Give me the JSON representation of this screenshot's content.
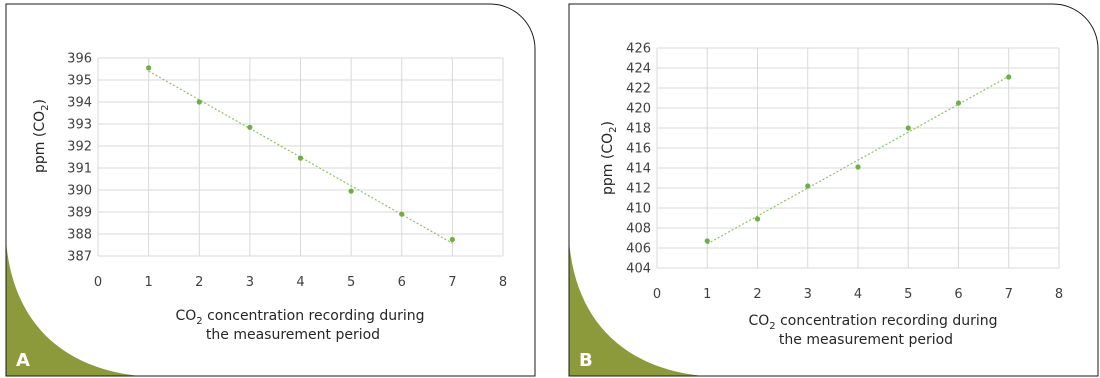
{
  "colors": {
    "point": "#70ad47",
    "trendline": "#8fc06a",
    "grid": "#d9d9d9",
    "corner": "#8c9a3c",
    "frame": "#1a1a1a"
  },
  "chart_data": [
    {
      "type": "scatter",
      "panel_label": "A",
      "x": [
        1,
        2,
        3,
        4,
        5,
        6,
        7
      ],
      "y": [
        395.55,
        394.0,
        392.85,
        391.45,
        389.95,
        388.9,
        387.75
      ],
      "trendline": "linear",
      "xlim": [
        0,
        8
      ],
      "ylim": [
        387,
        396
      ],
      "x_ticks": [
        "0",
        "1",
        "2",
        "3",
        "4",
        "5",
        "6",
        "7",
        "8"
      ],
      "y_ticks": [
        "387",
        "388",
        "389",
        "390",
        "391",
        "392",
        "393",
        "394",
        "395",
        "396"
      ],
      "ylabel": {
        "main": "ppm (CO",
        "sub": "2",
        "end": ")"
      },
      "xlabel": {
        "line1_main": "CO",
        "line1_sub": "2",
        "line1_rest": " concentration recording during",
        "line2": "the measurement period"
      },
      "grid": true,
      "legend": "none"
    },
    {
      "type": "scatter",
      "panel_label": "B",
      "x": [
        1,
        2,
        3,
        4,
        5,
        6,
        7
      ],
      "y": [
        406.7,
        408.9,
        412.2,
        414.1,
        418.0,
        420.5,
        423.1
      ],
      "trendline": "linear",
      "xlim": [
        0,
        8
      ],
      "ylim": [
        404,
        426
      ],
      "x_ticks": [
        "0",
        "1",
        "2",
        "3",
        "4",
        "5",
        "6",
        "7",
        "8"
      ],
      "y_ticks": [
        "404",
        "406",
        "408",
        "410",
        "412",
        "414",
        "416",
        "418",
        "420",
        "422",
        "424",
        "426"
      ],
      "ylabel": {
        "main": "ppm (CO",
        "sub": "2",
        "end": ")"
      },
      "xlabel": {
        "line1_main": "CO",
        "line1_sub": "2",
        "line1_rest": " concentration recording during",
        "line2": "the measurement period"
      },
      "grid": true,
      "legend": "none"
    }
  ]
}
